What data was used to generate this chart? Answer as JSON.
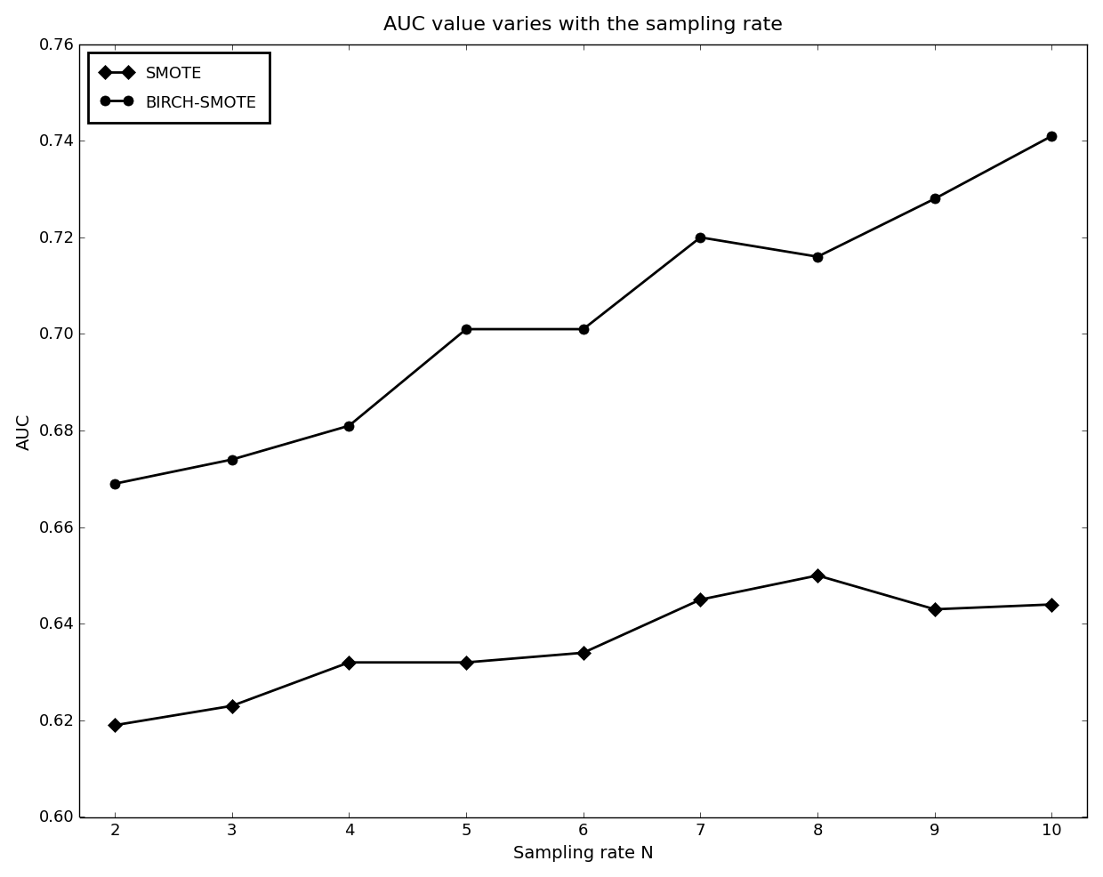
{
  "title": "AUC value varies with the sampling rate",
  "xlabel": "Sampling rate N",
  "ylabel": "AUC",
  "x": [
    2,
    3,
    4,
    5,
    6,
    7,
    8,
    9,
    10
  ],
  "smote_y": [
    0.619,
    0.623,
    0.632,
    0.632,
    0.634,
    0.645,
    0.65,
    0.643,
    0.644
  ],
  "birch_smote_y": [
    0.669,
    0.674,
    0.681,
    0.701,
    0.701,
    0.72,
    0.716,
    0.728,
    0.741
  ],
  "smote_label": "SMOTE",
  "birch_smote_label": "BIRCH-SMOTE",
  "line_color": "#000000",
  "ylim": [
    0.6,
    0.76
  ],
  "xlim": [
    2,
    10
  ],
  "yticks": [
    0.6,
    0.62,
    0.64,
    0.66,
    0.68,
    0.7,
    0.72,
    0.74,
    0.76
  ],
  "xticks": [
    2,
    3,
    4,
    5,
    6,
    7,
    8,
    9,
    10
  ],
  "title_fontsize": 16,
  "axis_label_fontsize": 14,
  "tick_fontsize": 13,
  "legend_fontsize": 13,
  "linewidth": 2.0,
  "markersize": 8
}
